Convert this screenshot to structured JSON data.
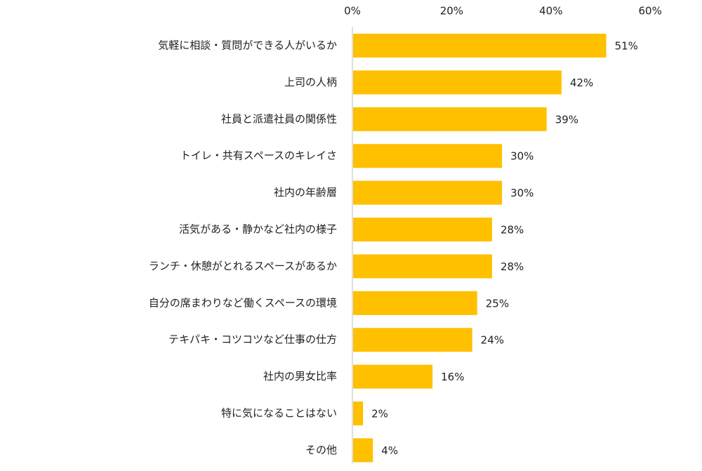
{
  "chart_data": {
    "type": "bar",
    "orientation": "horizontal",
    "categories": [
      "気軽に相談・質問ができる人がいるか",
      "上司の人柄",
      "社員と派遣社員の関係性",
      "トイレ・共有スペースのキレイさ",
      "社内の年齢層",
      "活気がある・静かなど社内の様子",
      "ランチ・休憩がとれるスペースがあるか",
      "自分の席まわりなど働くスペースの環境",
      "テキパキ・コツコツなど仕事の仕方",
      "社内の男女比率",
      "特に気になることはない",
      "その他"
    ],
    "values": [
      51,
      42,
      39,
      30,
      30,
      28,
      28,
      25,
      24,
      16,
      2,
      4
    ],
    "value_labels": [
      "51%",
      "42%",
      "39%",
      "30%",
      "30%",
      "28%",
      "28%",
      "25%",
      "24%",
      "16%",
      "2%",
      "4%"
    ],
    "xlim": [
      0,
      60
    ],
    "x_ticks": [
      0,
      20,
      40,
      60
    ],
    "x_tick_labels": [
      "0%",
      "20%",
      "40%",
      "60%"
    ],
    "x_axis_position": "top",
    "grid": false,
    "bar_color": "#FFC000",
    "axis_color": "#BFBFBF"
  }
}
